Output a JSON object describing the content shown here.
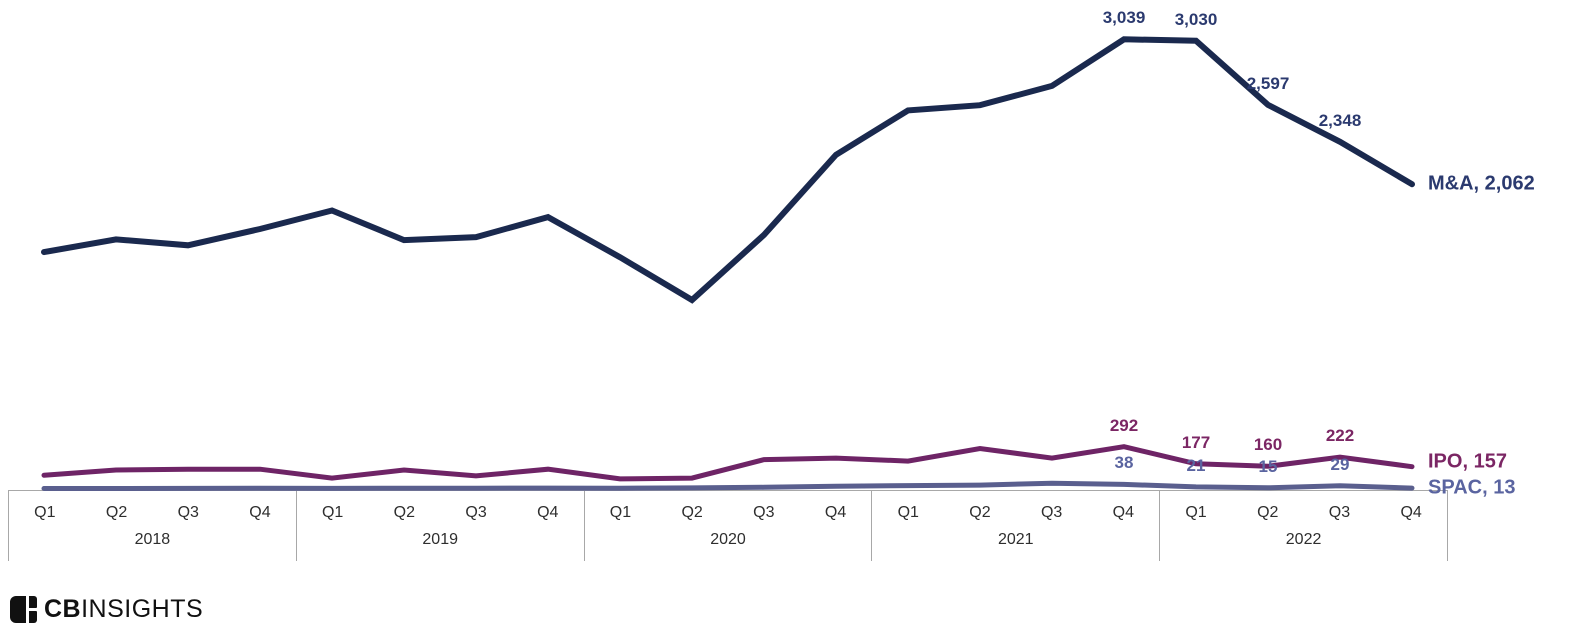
{
  "chart_data": {
    "type": "line",
    "x_axis": {
      "years": [
        {
          "label": "2018",
          "quarters": [
            "Q1",
            "Q2",
            "Q3",
            "Q4"
          ]
        },
        {
          "label": "2019",
          "quarters": [
            "Q1",
            "Q2",
            "Q3",
            "Q4"
          ]
        },
        {
          "label": "2020",
          "quarters": [
            "Q1",
            "Q2",
            "Q3",
            "Q4"
          ]
        },
        {
          "label": "2021",
          "quarters": [
            "Q1",
            "Q2",
            "Q3",
            "Q4"
          ]
        },
        {
          "label": "2022",
          "quarters": [
            "Q1",
            "Q2",
            "Q3",
            "Q4"
          ]
        }
      ]
    },
    "ylim": [
      0,
      3300
    ],
    "grid": false,
    "legend_position": "end-of-line-labels",
    "series": [
      {
        "name": "M&A",
        "color": "#1a294e",
        "label_color": "#2b3a6f",
        "stroke_width": 6,
        "values": [
          1604,
          1690,
          1650,
          1760,
          1885,
          1685,
          1705,
          1840,
          1570,
          1281,
          1720,
          2260,
          2560,
          2595,
          2725,
          3039,
          3030,
          2597,
          2348,
          2062
        ],
        "labeled_points": [
          {
            "index": 15,
            "text": "3,039"
          },
          {
            "index": 16,
            "text": "3,030"
          },
          {
            "index": 17,
            "text": "2,597"
          },
          {
            "index": 18,
            "text": "2,348"
          }
        ],
        "end_label": "M&A, 2,062",
        "end_label_dy": 0
      },
      {
        "name": "IPO",
        "color": "#6e2466",
        "label_color": "#7b2664",
        "stroke_width": 5,
        "values": [
          100,
          135,
          140,
          140,
          80,
          135,
          95,
          140,
          75,
          80,
          205,
          215,
          195,
          280,
          215,
          292,
          177,
          160,
          222,
          157
        ],
        "labeled_points": [
          {
            "index": 15,
            "text": "292"
          },
          {
            "index": 16,
            "text": "177"
          },
          {
            "index": 17,
            "text": "160"
          },
          {
            "index": 18,
            "text": "222"
          }
        ],
        "end_label": "IPO, 157",
        "end_label_dy": -5
      },
      {
        "name": "SPAC",
        "color": "#5a5f8e",
        "label_color": "#5a64a0",
        "stroke_width": 5,
        "values": [
          10,
          10,
          11,
          12,
          11,
          12,
          12,
          13,
          12,
          14,
          18,
          25,
          30,
          33,
          46,
          38,
          21,
          15,
          29,
          13
        ],
        "labeled_points": [
          {
            "index": 15,
            "text": "38"
          },
          {
            "index": 16,
            "text": "21"
          },
          {
            "index": 17,
            "text": "15"
          },
          {
            "index": 18,
            "text": "29"
          }
        ],
        "end_label": "SPAC, 13",
        "end_label_dy": 0
      }
    ]
  },
  "footer": {
    "logo_bold": "CB",
    "logo_light": "INSIGHTS"
  }
}
